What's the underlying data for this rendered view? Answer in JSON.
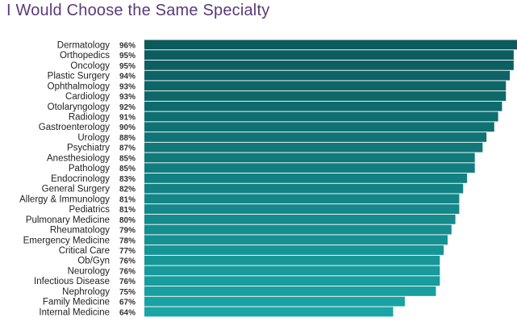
{
  "chart_data": {
    "type": "bar",
    "orientation": "horizontal",
    "title": "I Would Choose the Same Specialty",
    "categories": [
      "Dermatology",
      "Orthopedics",
      "Oncology",
      "Plastic Surgery",
      "Ophthalmology",
      "Cardiology",
      "Otolaryngology",
      "Radiology",
      "Gastroenterology",
      "Urology",
      "Psychiatry",
      "Anesthesiology",
      "Pathology",
      "Endocrinology",
      "General Surgery",
      "Allergy & Immunology",
      "Pediatrics",
      "Pulmonary Medicine",
      "Rheumatology",
      "Emergency Medicine",
      "Critical Care",
      "Ob/Gyn",
      "Neurology",
      "Infectious Disease",
      "Nephrology",
      "Family Medicine",
      "Internal Medicine"
    ],
    "values": [
      96,
      95,
      95,
      94,
      93,
      93,
      92,
      91,
      90,
      88,
      87,
      85,
      85,
      83,
      82,
      81,
      81,
      80,
      79,
      78,
      77,
      76,
      76,
      76,
      75,
      67,
      64
    ],
    "value_labels": [
      "96%",
      "95%",
      "95%",
      "94%",
      "93%",
      "93%",
      "92%",
      "91%",
      "90%",
      "88%",
      "87%",
      "85%",
      "85%",
      "83%",
      "82%",
      "81%",
      "81%",
      "80%",
      "79%",
      "78%",
      "77%",
      "76%",
      "76%",
      "76%",
      "75%",
      "67%",
      "64%"
    ],
    "xlim": [
      0,
      100
    ],
    "grid": false,
    "legend": "none",
    "colors": {
      "top": "#0b5a5c",
      "bottom": "#1aa5a6",
      "title": "#5b3a78"
    }
  }
}
